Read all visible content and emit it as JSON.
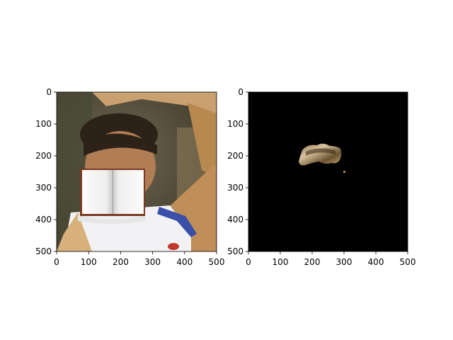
{
  "figure": {
    "background": "#ffffff",
    "panels": [
      {
        "id": "left",
        "content": "photo of a man with raised arm; an open book image pasted over the lower face",
        "x_ticks": [
          "0",
          "100",
          "200",
          "300",
          "400",
          "500"
        ],
        "y_ticks": [
          "0",
          "100",
          "200",
          "300",
          "400",
          "500"
        ]
      },
      {
        "id": "right",
        "content": "black background with a small segmented region showing the forehead/eyebrow area",
        "x_ticks": [
          "0",
          "100",
          "200",
          "300",
          "400",
          "500"
        ],
        "y_ticks": [
          "0",
          "100",
          "200",
          "300",
          "400",
          "500"
        ]
      }
    ]
  },
  "chart_data": [
    {
      "type": "heatmap",
      "title": "",
      "xlabel": "",
      "ylabel": "",
      "xlim": [
        0,
        500
      ],
      "ylim": [
        500,
        0
      ],
      "xticks": [
        0,
        100,
        200,
        300,
        400,
        500
      ],
      "yticks": [
        0,
        100,
        200,
        300,
        400,
        500
      ],
      "grid": false
    },
    {
      "type": "heatmap",
      "title": "",
      "xlabel": "",
      "ylabel": "",
      "xlim": [
        0,
        500
      ],
      "ylim": [
        500,
        0
      ],
      "xticks": [
        0,
        100,
        200,
        300,
        400,
        500
      ],
      "yticks": [
        0,
        100,
        200,
        300,
        400,
        500
      ],
      "grid": false
    }
  ],
  "colors": {
    "mask_background": "#000000",
    "skin": "#b08a5c",
    "book_page": "#f4f4f4",
    "book_cover": "#7a3a22",
    "jersey": "#f2f2f4",
    "jersey_trim": "#3a4fa8"
  }
}
